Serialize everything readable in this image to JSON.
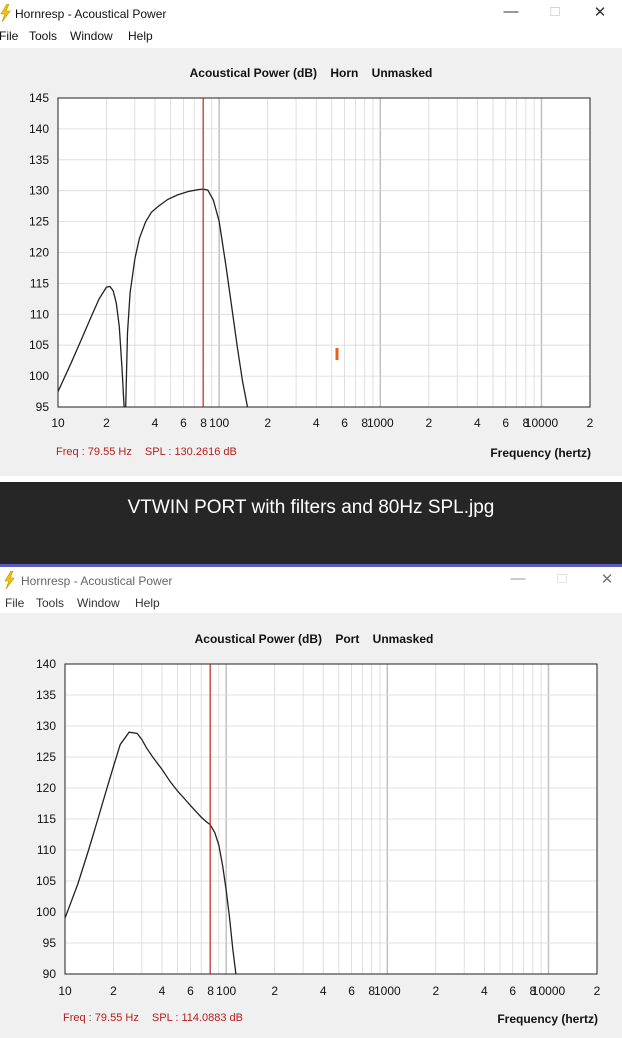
{
  "windows": [
    {
      "title": "Hornresp - Acoustical Power",
      "menu": [
        "File",
        "Tools",
        "Window",
        "Help"
      ],
      "controls": {
        "minimize": "—",
        "maximize": "□",
        "close": "✕"
      },
      "heading": {
        "quantity": "Acoustical Power (dB)",
        "mode": "Horn",
        "mask": "Unmasked"
      },
      "readout": {
        "freq": "Freq : 79.55 Hz",
        "spl": "SPL : 130.2616 dB"
      },
      "x_axis_label": "Frequency (hertz)"
    },
    {
      "title": "Hornresp - Acoustical Power",
      "menu": [
        "File",
        "Tools",
        "Window",
        "Help"
      ],
      "controls": {
        "minimize": "—",
        "maximize": "□",
        "close": "✕"
      },
      "heading": {
        "quantity": "Acoustical Power (dB)",
        "mode": "Port",
        "mask": "Unmasked"
      },
      "readout": {
        "freq": "Freq : 79.55 Hz",
        "spl": "SPL : 114.0883 dB"
      },
      "x_axis_label": "Frequency (hertz)"
    }
  ],
  "caption": "VTWIN PORT with filters and 80Hz SPL.jpg",
  "colors": {
    "curve": "#222222",
    "marker": "#c62828",
    "grid": "#d8d8d8",
    "grid_major": "#bdbdbd",
    "readout": "#b41e1e",
    "cursor_tick": "#e8601c",
    "accent_bar": "#5b5bbf"
  },
  "chart_data": [
    {
      "type": "line",
      "x_scale": "log",
      "xlim": [
        10,
        20000
      ],
      "ylim": [
        95,
        145
      ],
      "y_ticks": [
        95,
        100,
        105,
        110,
        115,
        120,
        125,
        130,
        135,
        140,
        145
      ],
      "x_tick_labels": [
        "10",
        "2",
        "4",
        "6",
        "8",
        "100",
        "2",
        "4",
        "6",
        "8",
        "1000",
        "2",
        "4",
        "6",
        "8",
        "10000",
        "2"
      ],
      "grid": true,
      "marker_x": 79.55,
      "series": [
        {
          "x": [
            10,
            12,
            14,
            16,
            18,
            20,
            21,
            22,
            23,
            24,
            25,
            25.7,
            26.3,
            27,
            28,
            30,
            32,
            35,
            38,
            42,
            48,
            55,
            65,
            75,
            79.55,
            85,
            92,
            100,
            110,
            120,
            130,
            140,
            150
          ],
          "y": [
            97.5,
            102,
            106,
            109.5,
            112.5,
            114.4,
            114.5,
            113.8,
            111.8,
            108,
            101,
            95,
            95,
            107,
            113.5,
            119,
            122.3,
            125,
            126.5,
            127.5,
            128.6,
            129.3,
            129.9,
            130.2,
            130.26,
            130.1,
            128.5,
            125,
            118,
            111,
            104.5,
            99,
            95
          ]
        }
      ]
    },
    {
      "type": "line",
      "x_scale": "log",
      "xlim": [
        10,
        20000
      ],
      "ylim": [
        90,
        140
      ],
      "y_ticks": [
        90,
        95,
        100,
        105,
        110,
        115,
        120,
        125,
        130,
        135,
        140
      ],
      "x_tick_labels": [
        "10",
        "2",
        "4",
        "6",
        "8",
        "100",
        "2",
        "4",
        "6",
        "8",
        "1000",
        "2",
        "4",
        "6",
        "8",
        "10000",
        "2"
      ],
      "grid": true,
      "marker_x": 79.55,
      "series": [
        {
          "x": [
            10,
            12,
            14,
            16,
            18,
            20,
            22,
            25,
            28,
            30,
            32,
            35,
            40,
            45,
            50,
            55,
            60,
            65,
            70,
            75,
            79.55,
            85,
            90,
            95,
            100,
            105,
            110,
            115
          ],
          "y": [
            99,
            104.5,
            110,
            115,
            119.5,
            123.5,
            127,
            129,
            128.8,
            127.8,
            126.5,
            125,
            123,
            121,
            119.5,
            118.3,
            117.2,
            116.2,
            115.3,
            114.6,
            114.09,
            112.8,
            110.8,
            107.5,
            103.5,
            99,
            94,
            90
          ]
        }
      ]
    }
  ]
}
